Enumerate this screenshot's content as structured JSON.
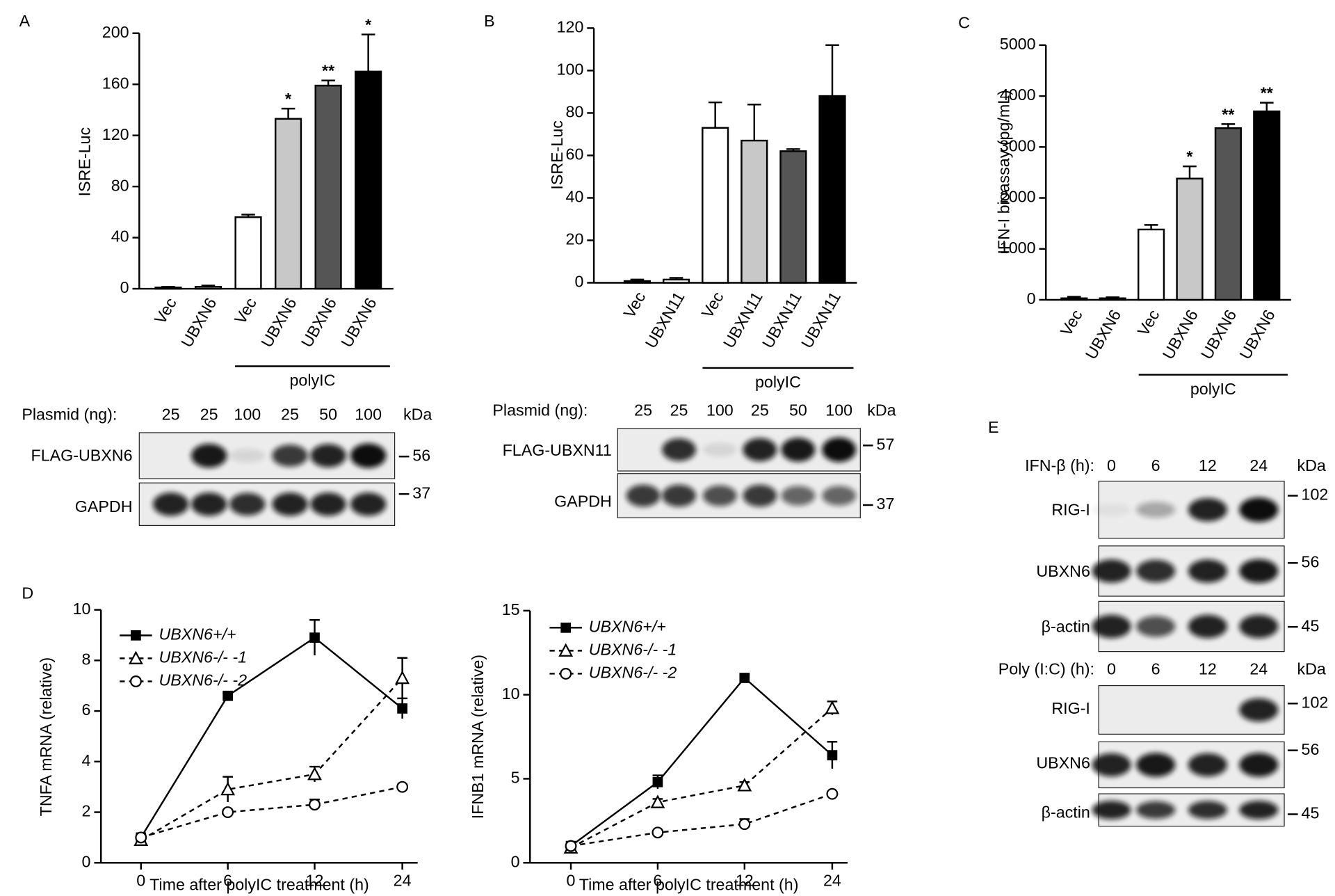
{
  "panel_labels": [
    "A",
    "B",
    "C",
    "D",
    "E"
  ],
  "chart_data": [
    {
      "type": "bar",
      "ylabel": "ISRE-Luc",
      "categories": [
        "Vec",
        "UBXN6",
        "Vec",
        "UBXN6",
        "UBXN6",
        "UBXN6"
      ],
      "values": [
        1,
        1.5,
        56,
        133,
        159,
        170
      ],
      "errors": [
        0.5,
        1,
        2,
        8,
        4,
        29
      ],
      "colors": [
        "#ffffff",
        "#ffffff",
        "#ffffff",
        "#c8c8c8",
        "#555555",
        "#000000"
      ],
      "ylim": [
        0,
        200
      ],
      "yticks": [
        0,
        40,
        80,
        120,
        160,
        200
      ],
      "group_label": "polyIC",
      "annotations": [
        "*",
        "**",
        "*"
      ]
    },
    {
      "type": "bar",
      "ylabel": "ISRE-Luc",
      "categories": [
        "Vec",
        "UBXN11",
        "Vec",
        "UBXN11",
        "UBXN11",
        "UBXN11"
      ],
      "values": [
        0.8,
        1.5,
        73,
        67,
        62,
        88
      ],
      "errors": [
        0.7,
        0.8,
        12,
        17,
        1,
        24
      ],
      "colors": [
        "#ffffff",
        "#ffffff",
        "#ffffff",
        "#c8c8c8",
        "#555555",
        "#000000"
      ],
      "ylim": [
        0,
        120
      ],
      "yticks": [
        0,
        20,
        40,
        60,
        80,
        100,
        120
      ],
      "group_label": "polyIC"
    },
    {
      "type": "bar",
      "ylabel": "IFN-I bioassay (pg/mL)",
      "categories": [
        "Vec",
        "UBXN6",
        "Vec",
        "UBXN6",
        "UBXN6",
        "UBXN6"
      ],
      "values": [
        30,
        30,
        1380,
        2380,
        3370,
        3700
      ],
      "errors": [
        30,
        20,
        90,
        240,
        80,
        170
      ],
      "colors": [
        "#ffffff",
        "#ffffff",
        "#ffffff",
        "#c8c8c8",
        "#555555",
        "#000000"
      ],
      "ylim": [
        0,
        5000
      ],
      "yticks": [
        0,
        1000,
        2000,
        3000,
        4000,
        5000
      ],
      "group_label": "polyIC",
      "annotations": [
        "*",
        "**",
        "**"
      ]
    },
    {
      "type": "line",
      "ylabel": "TNFA mRNA (relative)",
      "xlabel": "Time after polyIC treatment (h)",
      "categories": [
        "0",
        "6",
        "12",
        "24"
      ],
      "ylim": [
        0,
        10
      ],
      "yticks": [
        0,
        2,
        4,
        6,
        8,
        10
      ],
      "series": [
        {
          "name": "UBXN6+/+",
          "color": "#000000",
          "marker": "square",
          "dashed": false,
          "values": [
            1,
            6.6,
            8.9,
            6.1
          ],
          "errors": [
            0.1,
            0.1,
            0.7,
            0.4
          ]
        },
        {
          "name": "UBXN6-/- -1",
          "color": "#000000",
          "marker": "triangle",
          "dashed": true,
          "values": [
            0.9,
            2.9,
            3.5,
            7.3
          ],
          "errors": [
            0.1,
            0.5,
            0.3,
            0.8
          ]
        },
        {
          "name": "UBXN6-/- -2",
          "color": "#000000",
          "marker": "circle",
          "dashed": true,
          "values": [
            1,
            2,
            2.3,
            3
          ],
          "errors": [
            0.1,
            0.1,
            0.2,
            0.1
          ]
        }
      ]
    },
    {
      "type": "line",
      "ylabel": "IFNB1 mRNA (relative)",
      "xlabel": "Time after polyIC treatment (h)",
      "categories": [
        "0",
        "6",
        "12",
        "24"
      ],
      "ylim": [
        0,
        15
      ],
      "yticks": [
        0,
        5,
        10,
        15
      ],
      "series": [
        {
          "name": "UBXN6+/+",
          "color": "#000000",
          "marker": "square",
          "dashed": false,
          "values": [
            1,
            4.8,
            11,
            6.4
          ],
          "errors": [
            0.1,
            0.4,
            0.2,
            0.8
          ]
        },
        {
          "name": "UBXN6-/- -1",
          "color": "#000000",
          "marker": "triangle",
          "dashed": true,
          "values": [
            0.9,
            3.6,
            4.6,
            9.2
          ],
          "errors": [
            0.1,
            0.2,
            0.2,
            0.4
          ]
        },
        {
          "name": "UBXN6-/- -2",
          "color": "#000000",
          "marker": "circle",
          "dashed": true,
          "values": [
            1,
            1.8,
            2.3,
            4.1
          ],
          "errors": [
            0.1,
            0.1,
            0.3,
            0.1
          ]
        }
      ]
    }
  ],
  "blots": [
    {
      "header": "Plasmid (ng):",
      "lanes": [
        "25",
        "25",
        "100",
        "25",
        "50",
        "100"
      ],
      "unit": "kDa",
      "rows": [
        {
          "label": "FLAG-UBXN6",
          "marker": "56"
        },
        {
          "label": "GAPDH",
          "marker": "37"
        }
      ]
    },
    {
      "header": "Plasmid (ng):",
      "lanes": [
        "25",
        "25",
        "100",
        "25",
        "50",
        "100"
      ],
      "unit": "kDa",
      "rows": [
        {
          "label": "FLAG-UBXN11",
          "marker": "57"
        },
        {
          "label": "GAPDH",
          "marker": "37"
        }
      ]
    },
    {
      "header": "IFN-β (h):",
      "lanes": [
        "0",
        "6",
        "12",
        "24"
      ],
      "unit": "kDa",
      "rows": [
        {
          "label": "RIG-I",
          "marker": "102"
        },
        {
          "label": "UBXN6",
          "marker": "56"
        },
        {
          "label": "β-actin",
          "marker": "45"
        }
      ]
    },
    {
      "header": "Poly (I:C) (h):",
      "lanes": [
        "0",
        "6",
        "12",
        "24"
      ],
      "unit": "kDa",
      "rows": [
        {
          "label": "RIG-I",
          "marker": "102"
        },
        {
          "label": "UBXN6",
          "marker": "56"
        },
        {
          "label": "β-actin",
          "marker": "45"
        }
      ]
    }
  ]
}
